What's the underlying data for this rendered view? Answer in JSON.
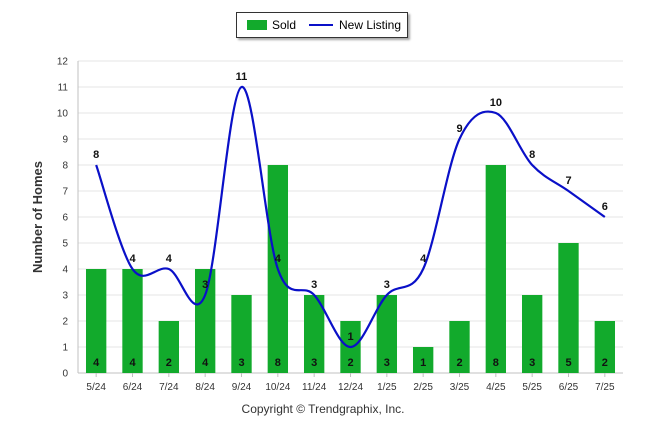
{
  "chart_data": {
    "type": "bar",
    "categories": [
      "5/24",
      "6/24",
      "7/24",
      "8/24",
      "9/24",
      "10/24",
      "11/24",
      "12/24",
      "1/25",
      "2/25",
      "3/25",
      "4/25",
      "5/25",
      "6/25",
      "7/25"
    ],
    "series": [
      {
        "name": "Sold",
        "kind": "bar",
        "color": "#12aa2c",
        "values": [
          4,
          4,
          2,
          4,
          3,
          8,
          3,
          2,
          3,
          1,
          2,
          8,
          3,
          5,
          2
        ]
      },
      {
        "name": "New Listing",
        "kind": "line",
        "color": "#0a10c8",
        "values": [
          8,
          4,
          4,
          3,
          11,
          4,
          3,
          1,
          3,
          4,
          9,
          10,
          8,
          7,
          6
        ]
      }
    ],
    "ylabel": "Number of Homes",
    "xlabel": "",
    "ylim": [
      0,
      12
    ],
    "yticks": [
      0,
      1,
      2,
      3,
      4,
      5,
      6,
      7,
      8,
      9,
      10,
      11,
      12
    ],
    "grid": true,
    "legend_position": "top-center"
  },
  "legend": {
    "sold_label": "Sold",
    "listing_label": "New Listing"
  },
  "footer": {
    "copyright": "Copyright © Trendgraphix, Inc."
  }
}
